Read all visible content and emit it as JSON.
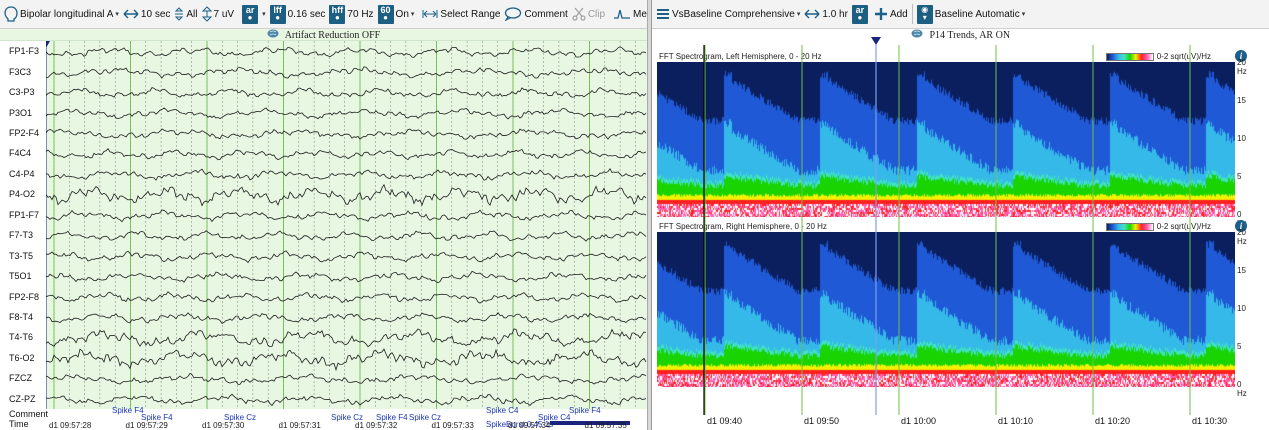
{
  "left_toolbar": {
    "montage_label": "Bipolar longitudinal A",
    "timebase_label": "10 sec",
    "channels_label": "All",
    "sensitivity_label": "7 uV",
    "ar_badge": "ar",
    "lff_badge": "lff",
    "lff_value": "0.16 sec",
    "hff_badge": "hff",
    "hff_value": "70 Hz",
    "notch_badge": "60",
    "notch_value": "On",
    "select_range_label": "Select Range",
    "comment_label": "Comment",
    "clip_label": "Clip",
    "speed_label": "Medium"
  },
  "left_banner": "Artifact Reduction OFF",
  "channels": [
    "FP1-F3",
    "F3C3",
    "C3-P3",
    "P3O1",
    "FP2-F4",
    "F4C4",
    "C4-P4",
    "P4-O2",
    "FP1-F7",
    "F7-T3",
    "T3-T5",
    "T5O1",
    "FP2-F8",
    "F8-T4",
    "T4-T6",
    "T6-O2",
    "FZCZ",
    "CZ-PZ"
  ],
  "bottom_rows": {
    "comment": "Comment",
    "time": "Time"
  },
  "annotations": [
    {
      "text": "Spike F4",
      "row": 1
    },
    {
      "text": "Spike F4",
      "row": 2
    },
    {
      "text": "Spike Cz",
      "row": 2
    },
    {
      "text": "Spike Cz",
      "row": 2
    },
    {
      "text": "Spike F4",
      "row": 2
    },
    {
      "text": "Spike Cz",
      "row": 2
    },
    {
      "text": "Spike C4",
      "row": 1
    },
    {
      "text": "SpikeBurst 0.45 1s",
      "row": 3
    },
    {
      "text": "Spike C4",
      "row": 2
    },
    {
      "text": "Spike F4",
      "row": 1
    }
  ],
  "eeg_times": [
    "d1 09:57:28",
    "d1 09:57:29",
    "d1 09:57:30",
    "d1 09:57:31",
    "d1 09:57:32",
    "d1 09:57:33",
    "d1 09:57:34",
    "d1 09:57:35"
  ],
  "right_toolbar": {
    "view_label": "VsBaseline Comprehensive",
    "timebase_label": "1.0 hr",
    "ar_badge": "ar",
    "add_label": "Add",
    "baseline_label": "Baseline Automatic"
  },
  "right_banner": "P14 Trends, AR ON",
  "spectrograms": [
    {
      "title": "FFT Spectrogram, Left Hemisphere, 0 - 20 Hz",
      "legend": "0-2 sqrt(uV)/Hz",
      "y_ticks": [
        "20 Hz",
        "15",
        "10",
        "5",
        "0 Hz"
      ]
    },
    {
      "title": "FFT Spectrogram, Right Hemisphere, 0 - 20 Hz",
      "legend": "0-2 sqrt(uV)/Hz",
      "y_ticks": [
        "20 Hz",
        "15",
        "10",
        "5",
        "0 Hz"
      ]
    }
  ],
  "trend_times": [
    "d1 09:40",
    "d1 09:50",
    "d1 10:00",
    "d1 10:10",
    "d1 10:20",
    "d1 10:30"
  ],
  "colors": {
    "eeg_bg": "#e7f7e2",
    "eeg_trace": "#1b1b1b",
    "gridline_major": "#6fbf4a",
    "cursor": "#1a237e",
    "annotation_text": "#1a35b3",
    "spec_dark": "#0b1f5e",
    "spec_blue": "#1f59d6",
    "spec_cyan": "#35b9e8",
    "spec_green": "#1ad400",
    "spec_yellow": "#f2f200",
    "spec_red": "#ff2020",
    "spec_pink": "#ff5fb3"
  }
}
